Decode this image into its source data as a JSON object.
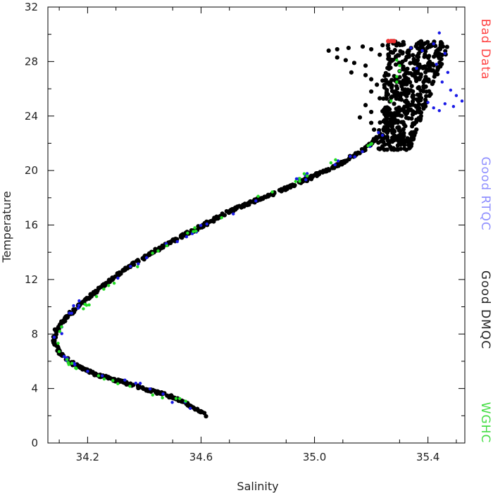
{
  "chart_data": {
    "type": "scatter",
    "title": "",
    "xlabel": "Salinity",
    "ylabel": "Temperature",
    "xlim": [
      34.06,
      35.53
    ],
    "ylim": [
      0,
      32
    ],
    "xticks": [
      34.2,
      34.6,
      35.0,
      35.4
    ],
    "xtick_labels": [
      "34.2",
      "34.6",
      "35.0",
      "35.4"
    ],
    "yticks": [
      0,
      4,
      8,
      12,
      16,
      20,
      24,
      28,
      32
    ],
    "ytick_labels": [
      "0",
      "4",
      "8",
      "12",
      "16",
      "20",
      "24",
      "28",
      "32"
    ],
    "grid": false,
    "legend_position": "right-outside-vertical",
    "series": [
      {
        "name": "Good DMQC",
        "color": "#000000",
        "path": [
          [
            34.62,
            2.0
          ],
          [
            34.55,
            2.9
          ],
          [
            34.48,
            3.5
          ],
          [
            34.4,
            4.0
          ],
          [
            34.32,
            4.5
          ],
          [
            34.25,
            4.9
          ],
          [
            34.2,
            5.3
          ],
          [
            34.14,
            5.9
          ],
          [
            34.1,
            6.7
          ],
          [
            34.08,
            7.5
          ],
          [
            34.09,
            8.3
          ],
          [
            34.13,
            9.3
          ],
          [
            34.18,
            10.3
          ],
          [
            34.25,
            11.5
          ],
          [
            34.35,
            13.0
          ],
          [
            34.47,
            14.5
          ],
          [
            34.6,
            15.9
          ],
          [
            34.73,
            17.3
          ],
          [
            34.88,
            18.5
          ],
          [
            35.0,
            19.6
          ],
          [
            35.1,
            20.6
          ],
          [
            35.18,
            21.6
          ],
          [
            35.23,
            22.6
          ],
          [
            35.27,
            23.6
          ],
          [
            35.3,
            24.6
          ]
        ],
        "band": 0.2,
        "cluster": {
          "x": [
            35.22,
            35.48
          ],
          "y": [
            21.5,
            29.5
          ],
          "density": 520
        },
        "tail": [
          [
            35.17,
            29.1
          ],
          [
            35.12,
            29.0
          ],
          [
            35.08,
            28.9
          ],
          [
            35.05,
            28.8
          ],
          [
            35.08,
            28.3
          ],
          [
            35.11,
            28.1
          ],
          [
            35.14,
            27.9
          ],
          [
            35.18,
            27.7
          ],
          [
            35.13,
            27.2
          ],
          [
            35.18,
            27.0
          ],
          [
            35.2,
            26.7
          ],
          [
            35.22,
            26.3
          ],
          [
            35.2,
            25.8
          ],
          [
            35.23,
            25.3
          ],
          [
            35.18,
            24.8
          ],
          [
            35.2,
            24.3
          ],
          [
            35.16,
            23.9
          ],
          [
            35.2,
            23.5
          ],
          [
            35.21,
            23.0
          ],
          [
            35.24,
            26.6
          ],
          [
            35.23,
            28.5
          ],
          [
            35.2,
            28.9
          ],
          [
            35.24,
            29.2
          ]
        ]
      },
      {
        "name": "Good RTQC",
        "color": "#1a1ae6",
        "path": [
          [
            34.6,
            2.3
          ],
          [
            34.4,
            4.1
          ],
          [
            34.22,
            5.2
          ],
          [
            34.12,
            6.2
          ],
          [
            34.09,
            7.8
          ],
          [
            34.15,
            9.8
          ],
          [
            34.32,
            12.6
          ],
          [
            34.55,
            15.3
          ],
          [
            34.8,
            17.9
          ],
          [
            35.0,
            19.8
          ],
          [
            35.15,
            21.2
          ],
          [
            35.25,
            22.9
          ]
        ],
        "band": 0.4,
        "extra": [
          [
            35.42,
            29.3
          ],
          [
            35.44,
            30.1
          ],
          [
            35.46,
            28.6
          ],
          [
            35.43,
            27.8
          ],
          [
            35.47,
            27.2
          ],
          [
            35.45,
            26.5
          ],
          [
            35.48,
            25.9
          ],
          [
            35.5,
            25.5
          ],
          [
            35.52,
            25.1
          ],
          [
            35.53,
            26.3
          ],
          [
            35.4,
            25.0
          ],
          [
            35.42,
            24.6
          ],
          [
            35.38,
            28.8
          ],
          [
            35.36,
            27.5
          ],
          [
            35.34,
            29.0
          ],
          [
            35.46,
            24.9
          ],
          [
            35.44,
            24.4
          ],
          [
            35.49,
            24.7
          ]
        ]
      },
      {
        "name": "WGHC",
        "color": "#22dd22",
        "path": [
          [
            34.55,
            3.0
          ],
          [
            34.45,
            3.5
          ],
          [
            34.28,
            4.7
          ],
          [
            34.15,
            5.7
          ],
          [
            34.1,
            6.3
          ],
          [
            34.11,
            8.7
          ],
          [
            34.22,
            10.5
          ],
          [
            34.4,
            13.5
          ],
          [
            34.7,
            17.0
          ],
          [
            35.0,
            19.9
          ],
          [
            35.2,
            22.0
          ]
        ],
        "band": 0.35,
        "extra": [
          [
            35.29,
            26.5
          ],
          [
            35.29,
            26.9
          ],
          [
            35.3,
            27.3
          ],
          [
            35.3,
            27.7
          ],
          [
            35.29,
            28.1
          ],
          [
            35.27,
            25.1
          ]
        ]
      },
      {
        "name": "Bad Data",
        "color": "#ee3333",
        "points": [
          [
            35.26,
            29.5
          ],
          [
            35.27,
            29.5
          ],
          [
            35.28,
            29.5
          ]
        ]
      }
    ]
  },
  "legend": [
    {
      "label": "Bad Data",
      "color": "#ff4444"
    },
    {
      "label": "Good RTQC",
      "color": "#8f8fff"
    },
    {
      "label": "Good DMQC",
      "color": "#222222"
    },
    {
      "label": "WGHC",
      "color": "#44dd44"
    }
  ]
}
